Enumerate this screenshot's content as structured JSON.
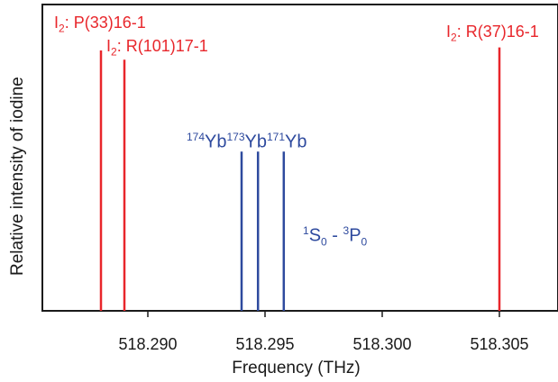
{
  "chart_data": {
    "type": "bar",
    "xlabel": "Frequency (THz)",
    "ylabel": "Relative intensity of iodine",
    "xlim": [
      518.2855,
      518.3075
    ],
    "ylim": [
      0,
      1
    ],
    "xticks": [
      {
        "value": 518.29,
        "label": "518.290"
      },
      {
        "value": 518.295,
        "label": "518.295"
      },
      {
        "value": 518.3,
        "label": "518.300"
      },
      {
        "value": 518.305,
        "label": "518.305"
      }
    ],
    "series": [
      {
        "name": "I2",
        "color": "#e8262b",
        "lines": [
          {
            "x": 518.288,
            "height": 0.85
          },
          {
            "x": 518.289,
            "height": 0.82
          },
          {
            "x": 518.305,
            "height": 0.86
          }
        ]
      },
      {
        "name": "1S0 - 3P0",
        "color": "#2e4a9e",
        "lines": [
          {
            "x": 518.294,
            "height": 0.52
          },
          {
            "x": 518.2947,
            "height": 0.52
          },
          {
            "x": 518.2958,
            "height": 0.52
          }
        ]
      }
    ],
    "annotations": {
      "p33": {
        "base": "I",
        "sub": "2",
        "rest": ": P(33)16-1"
      },
      "r101": {
        "base": "I",
        "sub": "2",
        "rest": ": R(101)17-1"
      },
      "r37": {
        "base": "I",
        "sub": "2",
        "rest": ": R(37)16-1"
      },
      "yb": {
        "m1": "174",
        "e1": "Yb",
        "m2": "173",
        "e2": "Yb",
        "m3": "171",
        "e3": "Yb"
      },
      "transition": {
        "s1": "1",
        "t1": "S",
        "b1": "0",
        "dash": " - ",
        "s2": "3",
        "t2": "P",
        "b2": "0"
      }
    }
  }
}
